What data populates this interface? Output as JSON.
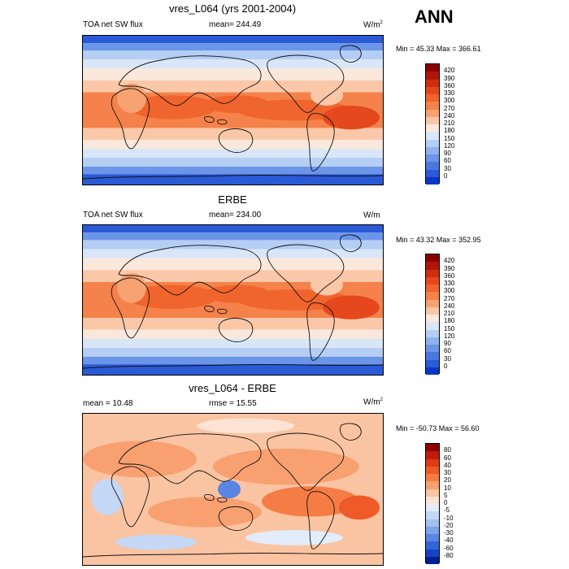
{
  "season": "ANN",
  "panels": [
    {
      "title": "vres_L064 (yrs 2001-2004)",
      "left_label": "TOA net SW flux",
      "mean_label": "mean= 244.49",
      "units": "W/m",
      "units_sup": "2",
      "minmax": "Min =  45.33 Max = 366.61",
      "levels": [
        "420",
        "390",
        "360",
        "330",
        "300",
        "270",
        "240",
        "210",
        "180",
        "150",
        "120",
        "90",
        "60",
        "30",
        "0"
      ],
      "colors": [
        "#8b0000",
        "#b0150a",
        "#cf2d10",
        "#e4481c",
        "#f0642d",
        "#f5824a",
        "#f8a273",
        "#fac8a8",
        "#fbe8dc",
        "#d9e6f7",
        "#b5cef3",
        "#8fb2ee",
        "#6a95e8",
        "#4a78e0",
        "#2a5ad6",
        "#0a36c6"
      ]
    },
    {
      "title": "ERBE",
      "left_label": "TOA net SW flux",
      "mean_label": "mean= 234.00",
      "units": "W/m",
      "units_sup": "",
      "minmax": "Min =  43.32 Max = 352.95",
      "levels": [
        "420",
        "390",
        "360",
        "330",
        "300",
        "270",
        "240",
        "210",
        "180",
        "150",
        "120",
        "90",
        "60",
        "30",
        "0"
      ],
      "colors": [
        "#8b0000",
        "#b0150a",
        "#cf2d10",
        "#e4481c",
        "#f0642d",
        "#f5824a",
        "#f8a273",
        "#fac8a8",
        "#fbe8dc",
        "#d9e6f7",
        "#b5cef3",
        "#8fb2ee",
        "#6a95e8",
        "#4a78e0",
        "#2a5ad6",
        "#0a36c6"
      ]
    },
    {
      "title": "vres_L064 - ERBE",
      "left_label": "mean =  10.48",
      "mean_label": "rmse =  15.55",
      "units": "W/m",
      "units_sup": "2",
      "minmax": "Min = -50.73 Max =  56.60",
      "levels": [
        "80",
        "60",
        "40",
        "30",
        "20",
        "10",
        "5",
        "0",
        "-5",
        "-10",
        "-20",
        "-30",
        "-40",
        "-60",
        "-80"
      ],
      "colors": [
        "#8b0000",
        "#c01a0c",
        "#de3a16",
        "#ee5a28",
        "#f57d45",
        "#f8a070",
        "#fac4a2",
        "#fde3d4",
        "#e3ecfa",
        "#c4d7f4",
        "#a3c0ef",
        "#7ea3ea",
        "#5a85e2",
        "#3465d8",
        "#1742c8",
        "#00208f"
      ]
    }
  ]
}
